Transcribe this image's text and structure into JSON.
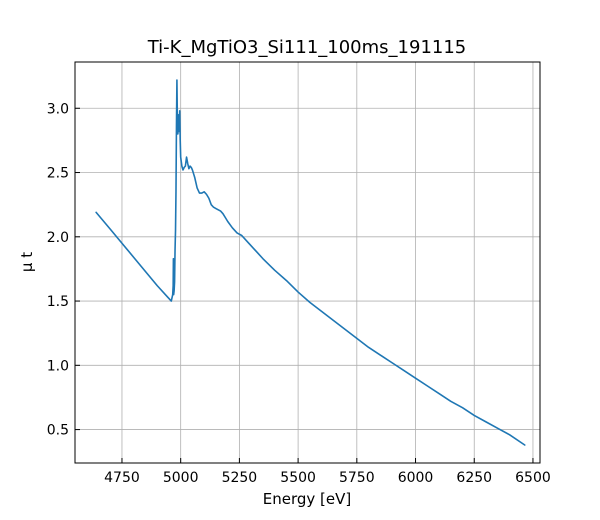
{
  "chart_data": {
    "type": "line",
    "title": "Ti-K_MgTiO3_Si111_100ms_191115",
    "xlabel": "Energy [eV]",
    "ylabel": "μ t",
    "xlim": [
      4550,
      6530
    ],
    "ylim": [
      0.24,
      3.36
    ],
    "xticks": [
      4750,
      5000,
      5250,
      5500,
      5750,
      6000,
      6250,
      6500
    ],
    "xtick_labels": [
      "4750",
      "5000",
      "5250",
      "5500",
      "5750",
      "6000",
      "6250",
      "6500"
    ],
    "yticks": [
      0.5,
      1.0,
      1.5,
      2.0,
      2.5,
      3.0
    ],
    "ytick_labels": [
      "0.5",
      "1.0",
      "1.5",
      "2.0",
      "2.5",
      "3.0"
    ],
    "grid": true,
    "color": "#1f77b4",
    "series": [
      {
        "x": [
          4640,
          4700,
          4750,
          4800,
          4850,
          4900,
          4940,
          4960,
          4966,
          4968,
          4969,
          4970,
          4972,
          4974,
          4976,
          4978,
          4980,
          4982,
          4984,
          4986,
          4988,
          4990,
          4992,
          4994,
          4996,
          4998,
          5000,
          5005,
          5010,
          5015,
          5020,
          5025,
          5030,
          5035,
          5040,
          5045,
          5050,
          5055,
          5060,
          5070,
          5080,
          5090,
          5100,
          5110,
          5120,
          5130,
          5140,
          5150,
          5160,
          5170,
          5180,
          5190,
          5200,
          5220,
          5240,
          5260,
          5280,
          5300,
          5325,
          5350,
          5400,
          5450,
          5500,
          5550,
          5600,
          5650,
          5700,
          5750,
          5800,
          5850,
          5900,
          5950,
          6000,
          6050,
          6100,
          6150,
          6200,
          6250,
          6300,
          6350,
          6400,
          6465
        ],
        "y": [
          2.19,
          2.06,
          1.95,
          1.84,
          1.73,
          1.62,
          1.54,
          1.5,
          1.55,
          1.62,
          1.83,
          1.55,
          1.58,
          1.65,
          1.9,
          2.05,
          2.35,
          2.85,
          3.22,
          2.9,
          2.8,
          2.85,
          2.95,
          2.82,
          2.98,
          2.75,
          2.62,
          2.55,
          2.52,
          2.54,
          2.55,
          2.62,
          2.57,
          2.53,
          2.55,
          2.54,
          2.52,
          2.49,
          2.46,
          2.38,
          2.34,
          2.34,
          2.35,
          2.33,
          2.3,
          2.25,
          2.23,
          2.22,
          2.21,
          2.2,
          2.18,
          2.15,
          2.12,
          2.07,
          2.03,
          2.01,
          1.97,
          1.93,
          1.88,
          1.83,
          1.74,
          1.66,
          1.57,
          1.49,
          1.42,
          1.35,
          1.28,
          1.21,
          1.14,
          1.08,
          1.02,
          0.96,
          0.9,
          0.84,
          0.78,
          0.72,
          0.67,
          0.61,
          0.56,
          0.51,
          0.46,
          0.38
        ]
      }
    ]
  }
}
